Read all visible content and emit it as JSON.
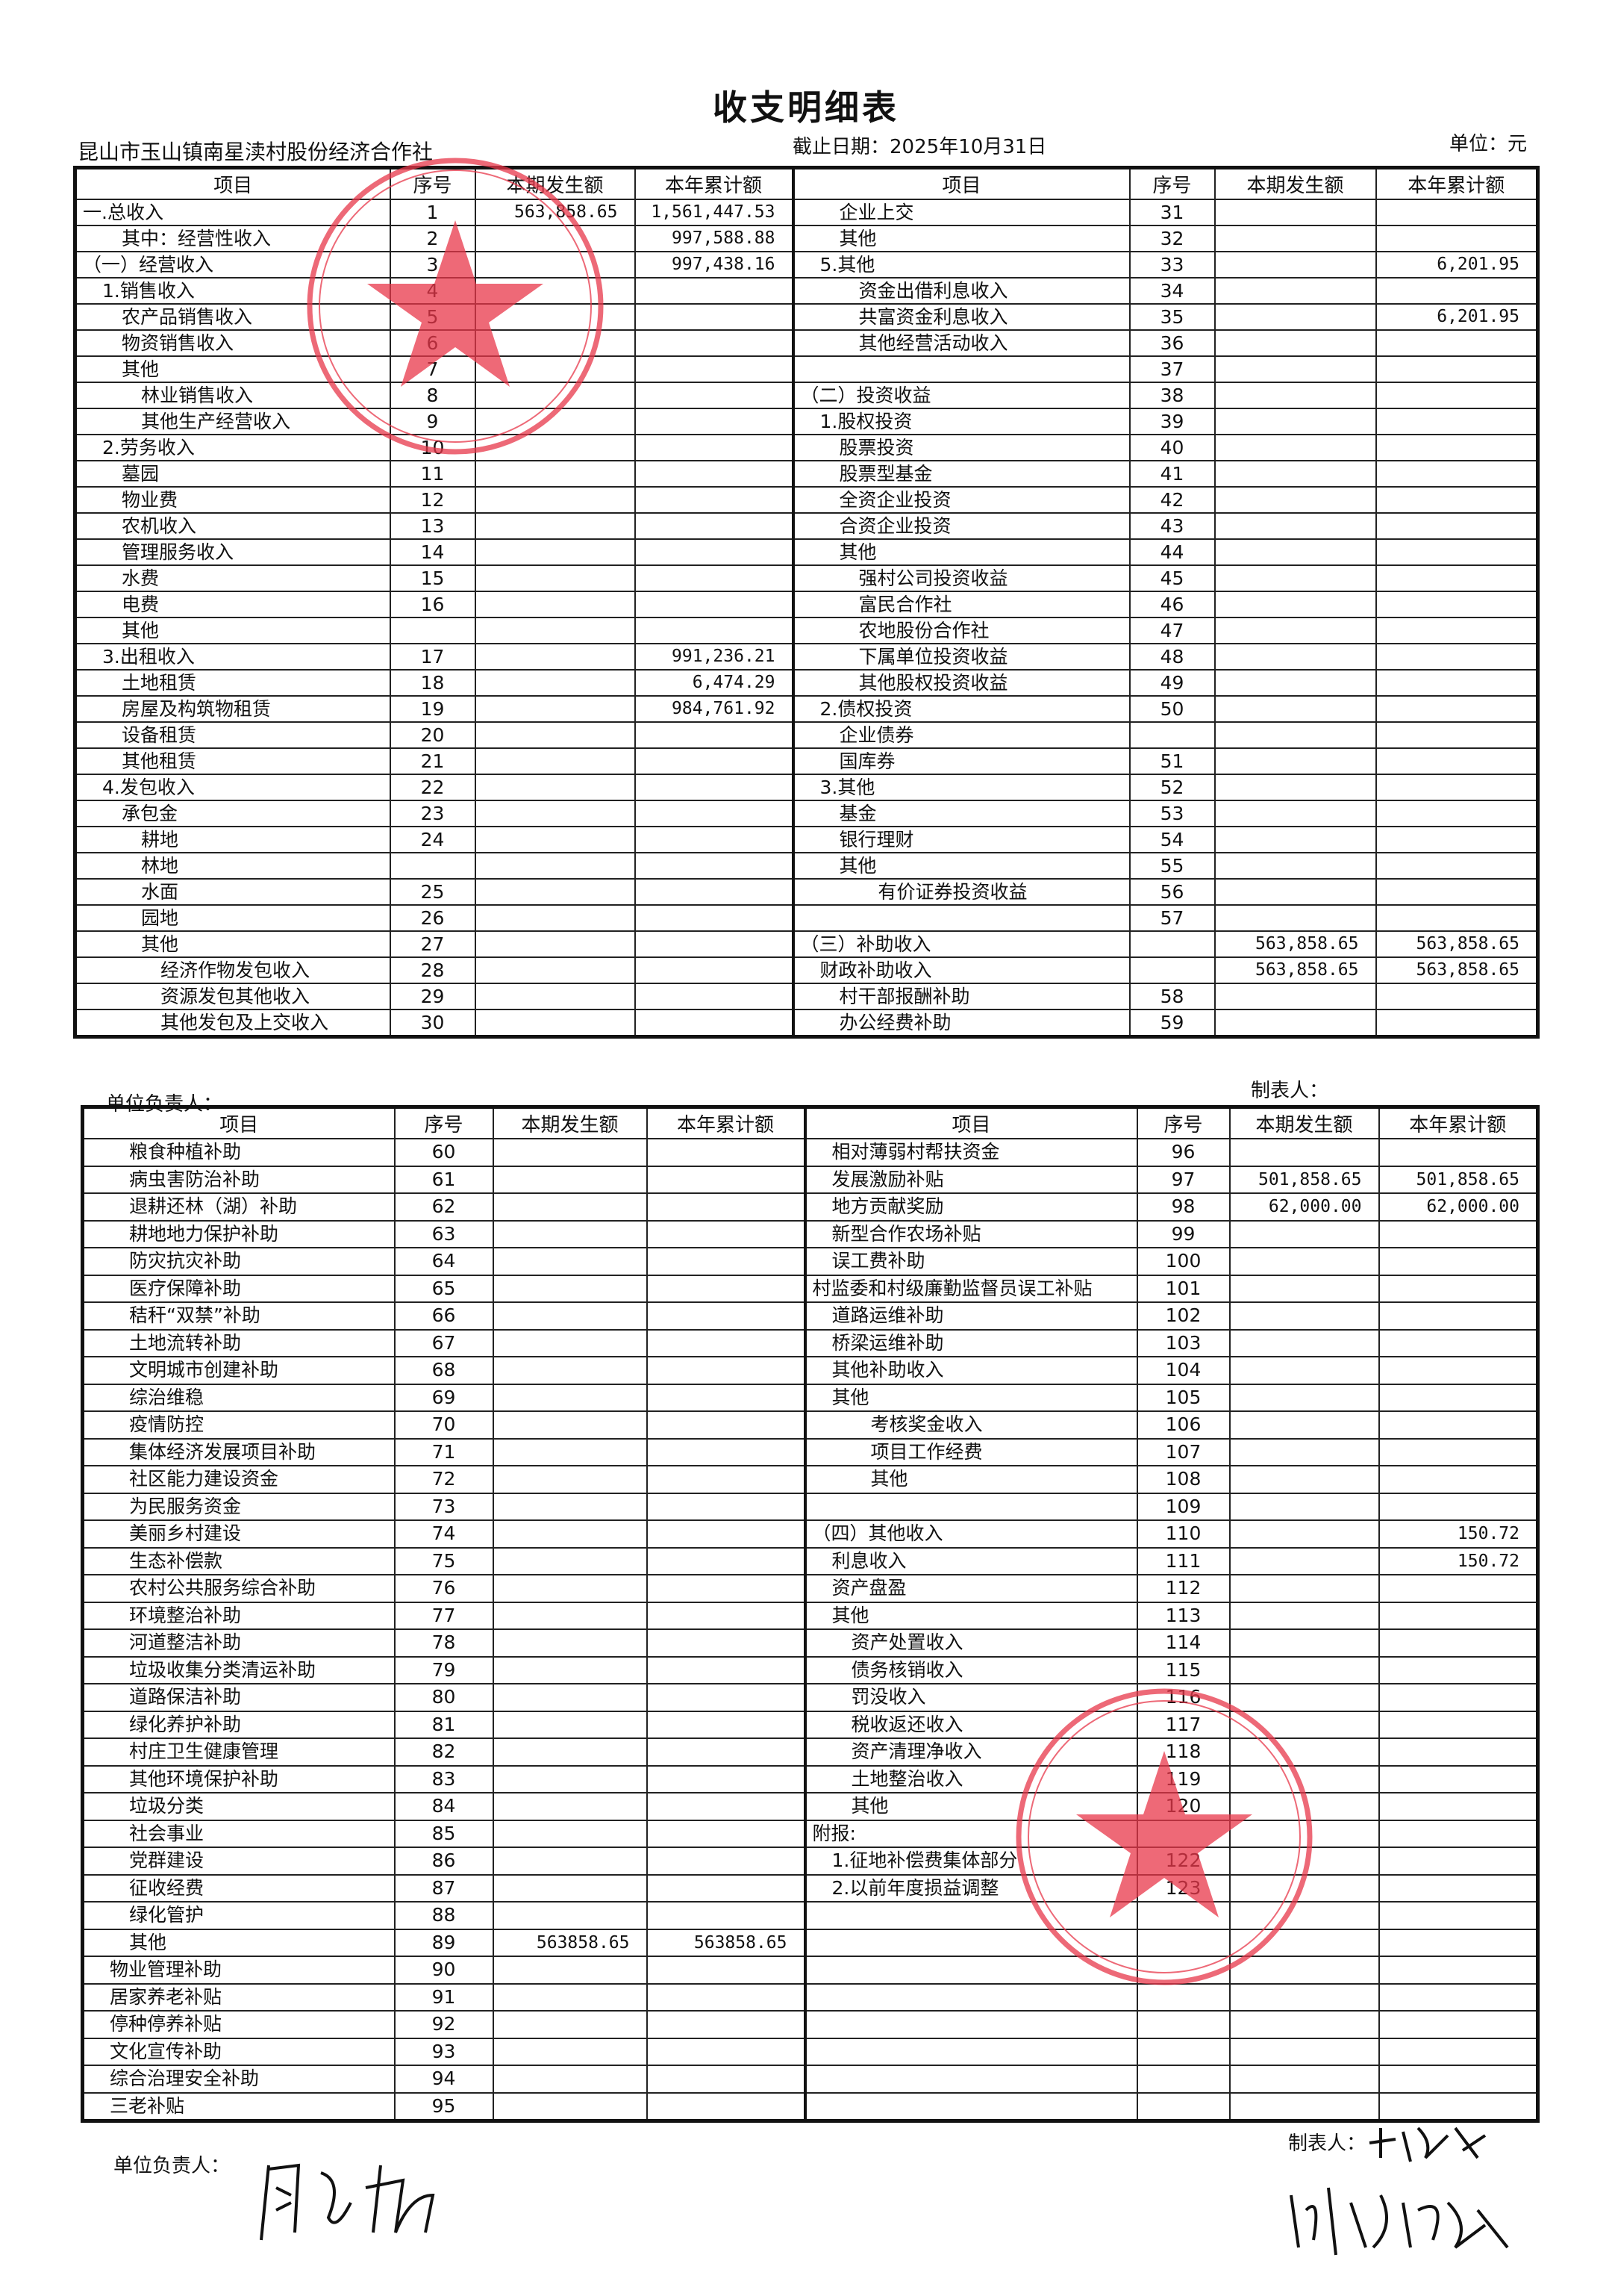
{
  "title": "收支明细表",
  "organization": "昆山市玉山镇南星渎村股份经济合作社",
  "cutoff_date": "截止日期：2025年10月31日",
  "unit": "单位：元",
  "headers": [
    "项目",
    "序号",
    "本期发生额",
    "本年累计额"
  ],
  "table1": {
    "left": [
      [
        "一.总收入",
        "1",
        "563,858.65",
        "1,561,447.53",
        0
      ],
      [
        "其中：经营性收入",
        "2",
        "",
        "997,588.88",
        2
      ],
      [
        "（一）经营收入",
        "3",
        "",
        "997,438.16",
        0
      ],
      [
        "1.销售收入",
        "4",
        "",
        "",
        1
      ],
      [
        "农产品销售收入",
        "5",
        "",
        "",
        2
      ],
      [
        "物资销售收入",
        "6",
        "",
        "",
        2
      ],
      [
        "其他",
        "7",
        "",
        "",
        2
      ],
      [
        "林业销售收入",
        "8",
        "",
        "",
        3
      ],
      [
        "其他生产经营收入",
        "9",
        "",
        "",
        3
      ],
      [
        "2.劳务收入",
        "10",
        "",
        "",
        1
      ],
      [
        "墓园",
        "11",
        "",
        "",
        2
      ],
      [
        "物业费",
        "12",
        "",
        "",
        2
      ],
      [
        "农机收入",
        "13",
        "",
        "",
        2
      ],
      [
        "管理服务收入",
        "14",
        "",
        "",
        2
      ],
      [
        "水费",
        "15",
        "",
        "",
        2
      ],
      [
        "电费",
        "16",
        "",
        "",
        2
      ],
      [
        "其他",
        "",
        "",
        "",
        2
      ],
      [
        "3.出租收入",
        "17",
        "",
        "991,236.21",
        1
      ],
      [
        "土地租赁",
        "18",
        "",
        "6,474.29",
        2
      ],
      [
        "房屋及构筑物租赁",
        "19",
        "",
        "984,761.92",
        2
      ],
      [
        "设备租赁",
        "20",
        "",
        "",
        2
      ],
      [
        "其他租赁",
        "21",
        "",
        "",
        2
      ],
      [
        "4.发包收入",
        "22",
        "",
        "",
        1
      ],
      [
        "承包金",
        "23",
        "",
        "",
        2
      ],
      [
        "耕地",
        "24",
        "",
        "",
        3
      ],
      [
        "林地",
        "",
        "",
        "",
        3
      ],
      [
        "水面",
        "25",
        "",
        "",
        3
      ],
      [
        "园地",
        "26",
        "",
        "",
        3
      ],
      [
        "其他",
        "27",
        "",
        "",
        3
      ],
      [
        "经济作物发包收入",
        "28",
        "",
        "",
        4
      ],
      [
        "资源发包其他收入",
        "29",
        "",
        "",
        4
      ],
      [
        "其他发包及上交收入",
        "30",
        "",
        "",
        4
      ]
    ],
    "right": [
      [
        "企业上交",
        "31",
        "",
        "",
        2
      ],
      [
        "其他",
        "32",
        "",
        "",
        2
      ],
      [
        "5.其他",
        "33",
        "",
        "6,201.95",
        1
      ],
      [
        "资金出借利息收入",
        "34",
        "",
        "",
        3
      ],
      [
        "共富资金利息收入",
        "35",
        "",
        "6,201.95",
        3
      ],
      [
        "其他经营活动收入",
        "36",
        "",
        "",
        3
      ],
      [
        "",
        "37",
        "",
        "",
        0
      ],
      [
        "（二）投资收益",
        "38",
        "",
        "",
        0
      ],
      [
        "1.股权投资",
        "39",
        "",
        "",
        1
      ],
      [
        "股票投资",
        "40",
        "",
        "",
        2
      ],
      [
        "股票型基金",
        "41",
        "",
        "",
        2
      ],
      [
        "全资企业投资",
        "42",
        "",
        "",
        2
      ],
      [
        "合资企业投资",
        "43",
        "",
        "",
        2
      ],
      [
        "其他",
        "44",
        "",
        "",
        2
      ],
      [
        "强村公司投资收益",
        "45",
        "",
        "",
        3
      ],
      [
        "富民合作社",
        "46",
        "",
        "",
        3
      ],
      [
        "农地股份合作社",
        "47",
        "",
        "",
        3
      ],
      [
        "下属单位投资收益",
        "48",
        "",
        "",
        3
      ],
      [
        "其他股权投资收益",
        "49",
        "",
        "",
        3
      ],
      [
        "2.债权投资",
        "50",
        "",
        "",
        1
      ],
      [
        "企业债券",
        "",
        "",
        "",
        2
      ],
      [
        "国库券",
        "51",
        "",
        "",
        2
      ],
      [
        "3.其他",
        "52",
        "",
        "",
        1
      ],
      [
        "基金",
        "53",
        "",
        "",
        2
      ],
      [
        "银行理财",
        "54",
        "",
        "",
        2
      ],
      [
        "其他",
        "55",
        "",
        "",
        2
      ],
      [
        "有价证券投资收益",
        "56",
        "",
        "",
        4
      ],
      [
        "",
        "57",
        "",
        "",
        0
      ],
      [
        "（三）补助收入",
        "",
        "563,858.65",
        "563,858.65",
        0
      ],
      [
        "财政补助收入",
        "",
        "563,858.65",
        "563,858.65",
        1
      ],
      [
        "村干部报酬补助",
        "58",
        "",
        "",
        2
      ],
      [
        "办公经费补助",
        "59",
        "",
        "",
        2
      ]
    ]
  },
  "table2": {
    "left": [
      [
        "粮食种植补助",
        "60",
        "",
        "",
        2
      ],
      [
        "病虫害防治补助",
        "61",
        "",
        "",
        2
      ],
      [
        "退耕还林（湖）补助",
        "62",
        "",
        "",
        2
      ],
      [
        "耕地地力保护补助",
        "63",
        "",
        "",
        2
      ],
      [
        "防灾抗灾补助",
        "64",
        "",
        "",
        2
      ],
      [
        "医疗保障补助",
        "65",
        "",
        "",
        2
      ],
      [
        "秸秆“双禁”补助",
        "66",
        "",
        "",
        2
      ],
      [
        "土地流转补助",
        "67",
        "",
        "",
        2
      ],
      [
        "文明城市创建补助",
        "68",
        "",
        "",
        2
      ],
      [
        "综治维稳",
        "69",
        "",
        "",
        2
      ],
      [
        "疫情防控",
        "70",
        "",
        "",
        2
      ],
      [
        "集体经济发展项目补助",
        "71",
        "",
        "",
        2
      ],
      [
        "社区能力建设资金",
        "72",
        "",
        "",
        2
      ],
      [
        "为民服务资金",
        "73",
        "",
        "",
        2
      ],
      [
        "美丽乡村建设",
        "74",
        "",
        "",
        2
      ],
      [
        "生态补偿款",
        "75",
        "",
        "",
        2
      ],
      [
        "农村公共服务综合补助",
        "76",
        "",
        "",
        2
      ],
      [
        "环境整治补助",
        "77",
        "",
        "",
        2
      ],
      [
        "河道整洁补助",
        "78",
        "",
        "",
        2
      ],
      [
        "垃圾收集分类清运补助",
        "79",
        "",
        "",
        2
      ],
      [
        "道路保洁补助",
        "80",
        "",
        "",
        2
      ],
      [
        "绿化养护补助",
        "81",
        "",
        "",
        2
      ],
      [
        "村庄卫生健康管理",
        "82",
        "",
        "",
        2
      ],
      [
        "其他环境保护补助",
        "83",
        "",
        "",
        2
      ],
      [
        "垃圾分类",
        "84",
        "",
        "",
        2
      ],
      [
        "社会事业",
        "85",
        "",
        "",
        2
      ],
      [
        "党群建设",
        "86",
        "",
        "",
        2
      ],
      [
        "征收经费",
        "87",
        "",
        "",
        2
      ],
      [
        "绿化管护",
        "88",
        "",
        "",
        2
      ],
      [
        "其他",
        "89",
        "563858.65",
        "563858.65",
        2
      ],
      [
        "物业管理补助",
        "90",
        "",
        "",
        1
      ],
      [
        "居家养老补贴",
        "91",
        "",
        "",
        1
      ],
      [
        "停种停养补贴",
        "92",
        "",
        "",
        1
      ],
      [
        "文化宣传补助",
        "93",
        "",
        "",
        1
      ],
      [
        "综合治理安全补助",
        "94",
        "",
        "",
        1
      ],
      [
        "三老补贴",
        "95",
        "",
        "",
        1
      ]
    ],
    "right": [
      [
        "相对薄弱村帮扶资金",
        "96",
        "",
        "",
        1
      ],
      [
        "发展激励补贴",
        "97",
        "501,858.65",
        "501,858.65",
        1
      ],
      [
        "地方贡献奖励",
        "98",
        "62,000.00",
        "62,000.00",
        1
      ],
      [
        "新型合作农场补贴",
        "99",
        "",
        "",
        1
      ],
      [
        "误工费补助",
        "100",
        "",
        "",
        1
      ],
      [
        "村监委和村级廉勤监督员误工补贴",
        "101",
        "",
        "",
        0
      ],
      [
        "道路运维补助",
        "102",
        "",
        "",
        1
      ],
      [
        "桥梁运维补助",
        "103",
        "",
        "",
        1
      ],
      [
        "其他补助收入",
        "104",
        "",
        "",
        1
      ],
      [
        "其他",
        "105",
        "",
        "",
        1
      ],
      [
        "考核奖金收入",
        "106",
        "",
        "",
        3
      ],
      [
        "项目工作经费",
        "107",
        "",
        "",
        3
      ],
      [
        "其他",
        "108",
        "",
        "",
        3
      ],
      [
        "",
        "109",
        "",
        "",
        0
      ],
      [
        "（四）其他收入",
        "110",
        "",
        "150.72",
        0
      ],
      [
        "利息收入",
        "111",
        "",
        "150.72",
        1
      ],
      [
        "资产盘盈",
        "112",
        "",
        "",
        1
      ],
      [
        "其他",
        "113",
        "",
        "",
        1
      ],
      [
        "资产处置收入",
        "114",
        "",
        "",
        2
      ],
      [
        "债务核销收入",
        "115",
        "",
        "",
        2
      ],
      [
        "罚没收入",
        "116",
        "",
        "",
        2
      ],
      [
        "税收返还收入",
        "117",
        "",
        "",
        2
      ],
      [
        "资产清理净收入",
        "118",
        "",
        "",
        2
      ],
      [
        "土地整治收入",
        "119",
        "",
        "",
        2
      ],
      [
        "其他",
        "120",
        "",
        "",
        2
      ],
      [
        "附报:",
        "",
        "",
        "",
        0
      ],
      [
        "1.征地补偿费集体部分",
        "122",
        "",
        "",
        1
      ],
      [
        "2.以前年度损益调整",
        "123",
        "",
        "",
        1
      ],
      [
        "",
        "",
        "",
        "",
        0
      ],
      [
        "",
        "",
        "",
        "",
        0
      ],
      [
        "",
        "",
        "",
        "",
        0
      ],
      [
        "",
        "",
        "",
        "",
        0
      ],
      [
        "",
        "",
        "",
        "",
        0
      ],
      [
        "",
        "",
        "",
        "",
        0
      ],
      [
        "",
        "",
        "",
        "",
        0
      ],
      [
        "",
        "",
        "",
        "",
        0
      ]
    ]
  },
  "signatures": {
    "responsible_label": "单位负责人：",
    "preparer_label": "制表人："
  },
  "stamp_color": "#e8374a"
}
